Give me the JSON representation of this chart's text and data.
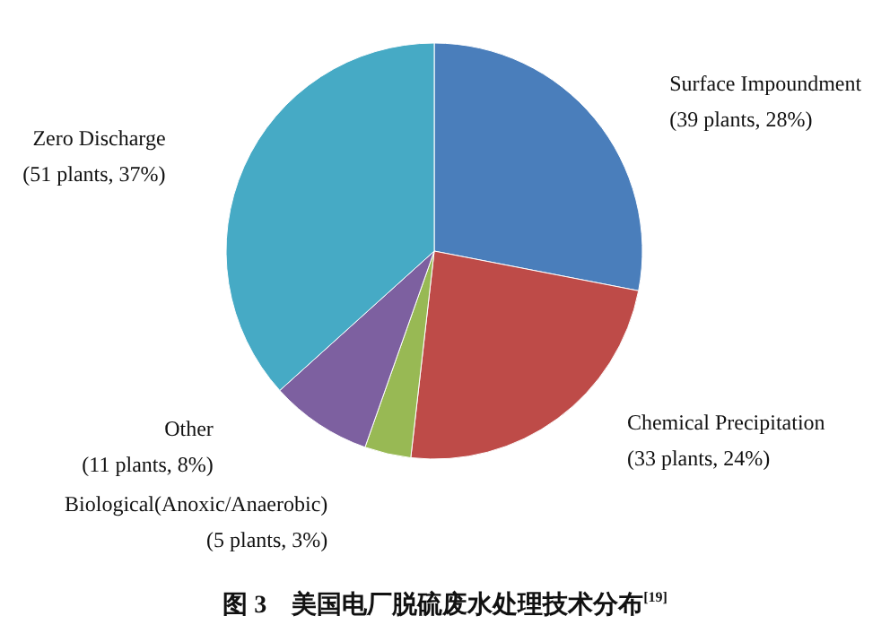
{
  "chart_data": {
    "type": "pie",
    "title": "图 3　美国电厂脱硫废水处理技术分布$^{[19]}$",
    "categories": [
      "Surface Impoundment",
      "Chemical Precipitation",
      "Biological(Anoxic/Anaerobic)",
      "Other",
      "Zero Discharge"
    ],
    "values": [
      39,
      33,
      5,
      11,
      51
    ],
    "value_labels": [
      "(39 plants, 28%)",
      "(33 plants, 24%)",
      "(5 plants, 3%)",
      "(11 plants, 8%)",
      "(51 plants, 37%)"
    ],
    "colors": [
      "#4a7ebb",
      "#be4b48",
      "#98b954",
      "#7d60a0",
      "#46aac5"
    ]
  }
}
